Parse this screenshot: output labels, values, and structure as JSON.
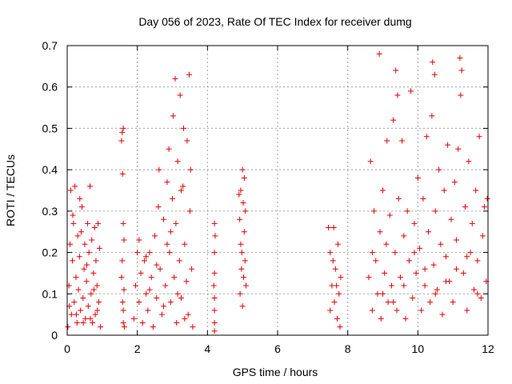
{
  "chart_data": {
    "type": "scatter",
    "title": "Day 056 of 2023, Rate Of TEC Index for receiver dumg",
    "xlabel": "GPS time / hours",
    "ylabel": "ROTI / TECUs",
    "xlim": [
      0,
      12
    ],
    "ylim": [
      0,
      0.7
    ],
    "x_ticks": [
      0,
      2,
      4,
      6,
      8,
      10,
      12
    ],
    "y_ticks": [
      0,
      0.1,
      0.2,
      0.3,
      0.4,
      0.5,
      0.6,
      0.7
    ],
    "x_tick_labels": [
      "0",
      "2",
      "4",
      "6",
      "8",
      "10",
      "12"
    ],
    "y_tick_labels": [
      "0",
      "0.1",
      "0.2",
      "0.3",
      "0.4",
      "0.5",
      "0.6",
      "0.7"
    ],
    "grid": true,
    "marker": "+",
    "color": "#e00000",
    "series": [
      {
        "name": "ROTI",
        "points": [
          [
            0.02,
            0.02
          ],
          [
            0.05,
            0.12
          ],
          [
            0.08,
            0.22
          ],
          [
            0.1,
            0.35
          ],
          [
            0.12,
            0.05
          ],
          [
            0.15,
            0.18
          ],
          [
            0.18,
            0.27
          ],
          [
            0.2,
            0.08
          ],
          [
            0.22,
            0.36
          ],
          [
            0.25,
            0.14
          ],
          [
            0.28,
            0.03
          ],
          [
            0.3,
            0.24
          ],
          [
            0.32,
            0.11
          ],
          [
            0.35,
            0.19
          ],
          [
            0.38,
            0.06
          ],
          [
            0.4,
            0.25
          ],
          [
            0.42,
            0.31
          ],
          [
            0.45,
            0.09
          ],
          [
            0.48,
            0.16
          ],
          [
            0.5,
            0.22
          ],
          [
            0.52,
            0.04
          ],
          [
            0.55,
            0.13
          ],
          [
            0.58,
            0.27
          ],
          [
            0.6,
            0.07
          ],
          [
            0.62,
            0.2
          ],
          [
            0.65,
            0.36
          ],
          [
            0.68,
            0.1
          ],
          [
            0.7,
            0.23
          ],
          [
            0.72,
            0.03
          ],
          [
            0.75,
            0.15
          ],
          [
            0.78,
            0.26
          ],
          [
            0.8,
            0.05
          ],
          [
            0.82,
            0.18
          ],
          [
            0.85,
            0.12
          ],
          [
            0.88,
            0.27
          ],
          [
            0.9,
            0.08
          ],
          [
            0.92,
            0.21
          ],
          [
            0.95,
            0.02
          ],
          [
            0.06,
            0.07
          ],
          [
            0.26,
            0.05
          ],
          [
            0.46,
            0.03
          ],
          [
            0.66,
            0.04
          ],
          [
            0.86,
            0.06
          ],
          [
            0.16,
            0.29
          ],
          [
            0.36,
            0.33
          ],
          [
            0.56,
            0.17
          ],
          [
            0.76,
            0.11
          ],
          [
            1.55,
            0.47
          ],
          [
            1.57,
            0.49
          ],
          [
            1.6,
            0.5
          ],
          [
            1.62,
            0.23
          ],
          [
            1.58,
            0.39
          ],
          [
            1.6,
            0.27
          ],
          [
            1.55,
            0.14
          ],
          [
            1.58,
            0.08
          ],
          [
            1.6,
            0.03
          ],
          [
            1.62,
            0.11
          ],
          [
            1.57,
            0.18
          ],
          [
            1.6,
            0.06
          ],
          [
            1.63,
            0.02
          ],
          [
            1.9,
            0.04
          ],
          [
            1.95,
            0.12
          ],
          [
            2.0,
            0.2
          ],
          [
            2.05,
            0.08
          ],
          [
            2.1,
            0.15
          ],
          [
            2.15,
            0.03
          ],
          [
            2.2,
            0.18
          ],
          [
            2.25,
            0.1
          ],
          [
            2.3,
            0.06
          ],
          [
            2.35,
            0.2
          ],
          [
            2.4,
            0.14
          ],
          [
            2.45,
            0.02
          ],
          [
            2.5,
            0.24
          ],
          [
            2.55,
            0.09
          ],
          [
            2.6,
            0.31
          ],
          [
            2.62,
            0.4
          ],
          [
            2.65,
            0.16
          ],
          [
            2.7,
            0.05
          ],
          [
            2.75,
            0.28
          ],
          [
            2.8,
            0.12
          ],
          [
            2.85,
            0.37
          ],
          [
            2.9,
            0.45
          ],
          [
            2.92,
            0.2
          ],
          [
            2.95,
            0.08
          ],
          [
            3.0,
            0.33
          ],
          [
            3.02,
            0.53
          ],
          [
            3.05,
            0.14
          ],
          [
            3.08,
            0.62
          ],
          [
            3.1,
            0.27
          ],
          [
            3.12,
            0.03
          ],
          [
            3.15,
            0.42
          ],
          [
            3.2,
            0.18
          ],
          [
            3.22,
            0.58
          ],
          [
            3.25,
            0.09
          ],
          [
            3.3,
            0.36
          ],
          [
            3.32,
            0.5
          ],
          [
            3.35,
            0.22
          ],
          [
            3.4,
            0.13
          ],
          [
            3.42,
            0.47
          ],
          [
            3.45,
            0.05
          ],
          [
            3.48,
            0.63
          ],
          [
            3.5,
            0.3
          ],
          [
            3.52,
            0.4
          ],
          [
            3.55,
            0.16
          ],
          [
            3.58,
            0.02
          ],
          [
            2.05,
            0.23
          ],
          [
            2.35,
            0.11
          ],
          [
            2.55,
            0.17
          ],
          [
            2.75,
            0.07
          ],
          [
            2.95,
            0.25
          ],
          [
            3.15,
            0.1
          ],
          [
            3.35,
            0.04
          ],
          [
            2.25,
            0.19
          ],
          [
            2.85,
            0.22
          ],
          [
            3.25,
            0.35
          ],
          [
            4.2,
            0.27
          ],
          [
            4.2,
            0.2
          ],
          [
            4.2,
            0.15
          ],
          [
            4.2,
            0.09
          ],
          [
            4.2,
            0.06
          ],
          [
            4.2,
            0.03
          ],
          [
            4.2,
            0.01
          ],
          [
            4.22,
            0.24
          ],
          [
            4.18,
            0.12
          ],
          [
            4.9,
            0.34
          ],
          [
            4.92,
            0.28
          ],
          [
            4.95,
            0.22
          ],
          [
            4.97,
            0.16
          ],
          [
            5.0,
            0.4
          ],
          [
            5.02,
            0.32
          ],
          [
            5.05,
            0.25
          ],
          [
            5.07,
            0.18
          ],
          [
            5.1,
            0.12
          ],
          [
            4.93,
            0.1
          ],
          [
            5.0,
            0.07
          ],
          [
            5.05,
            0.38
          ],
          [
            4.98,
            0.2
          ],
          [
            5.08,
            0.3
          ],
          [
            5.03,
            0.14
          ],
          [
            4.95,
            0.35
          ],
          [
            7.45,
            0.26
          ],
          [
            7.5,
            0.2
          ],
          [
            7.55,
            0.12
          ],
          [
            7.6,
            0.26
          ],
          [
            7.62,
            0.08
          ],
          [
            7.65,
            0.16
          ],
          [
            7.7,
            0.04
          ],
          [
            7.72,
            0.22
          ],
          [
            7.75,
            0.1
          ],
          [
            7.78,
            0.02
          ],
          [
            7.8,
            0.14
          ],
          [
            7.5,
            0.06
          ],
          [
            7.58,
            0.18
          ],
          [
            7.68,
            0.12
          ],
          [
            8.6,
            0.14
          ],
          [
            8.65,
            0.42
          ],
          [
            8.7,
            0.06
          ],
          [
            8.75,
            0.3
          ],
          [
            8.8,
            0.18
          ],
          [
            8.85,
            0.1
          ],
          [
            8.9,
            0.68
          ],
          [
            8.92,
            0.25
          ],
          [
            8.95,
            0.04
          ],
          [
            9.0,
            0.35
          ],
          [
            9.05,
            0.15
          ],
          [
            9.1,
            0.22
          ],
          [
            9.12,
            0.47
          ],
          [
            9.15,
            0.08
          ],
          [
            9.2,
            0.29
          ],
          [
            9.25,
            0.12
          ],
          [
            9.3,
            0.52
          ],
          [
            9.35,
            0.2
          ],
          [
            9.37,
            0.64
          ],
          [
            9.4,
            0.06
          ],
          [
            9.42,
            0.58
          ],
          [
            9.45,
            0.33
          ],
          [
            9.5,
            0.14
          ],
          [
            9.55,
            0.47
          ],
          [
            9.6,
            0.24
          ],
          [
            9.65,
            0.04
          ],
          [
            9.7,
            0.3
          ],
          [
            9.75,
            0.18
          ],
          [
            9.8,
            0.59
          ],
          [
            9.85,
            0.09
          ],
          [
            9.9,
            0.27
          ],
          [
            9.95,
            0.15
          ],
          [
            10.0,
            0.38
          ],
          [
            10.05,
            0.21
          ],
          [
            10.1,
            0.06
          ],
          [
            10.15,
            0.33
          ],
          [
            10.2,
            0.12
          ],
          [
            10.25,
            0.48
          ],
          [
            10.3,
            0.25
          ],
          [
            10.35,
            0.08
          ],
          [
            10.4,
            0.53
          ],
          [
            10.42,
            0.66
          ],
          [
            10.45,
            0.17
          ],
          [
            10.48,
            0.63
          ],
          [
            10.5,
            0.3
          ],
          [
            10.55,
            0.11
          ],
          [
            10.6,
            0.4
          ],
          [
            10.65,
            0.22
          ],
          [
            10.7,
            0.05
          ],
          [
            10.75,
            0.35
          ],
          [
            10.8,
            0.19
          ],
          [
            10.85,
            0.46
          ],
          [
            10.9,
            0.13
          ],
          [
            10.95,
            0.28
          ],
          [
            11.0,
            0.08
          ],
          [
            11.05,
            0.37
          ],
          [
            11.1,
            0.23
          ],
          [
            11.15,
            0.45
          ],
          [
            11.2,
            0.67
          ],
          [
            11.22,
            0.58
          ],
          [
            11.25,
            0.64
          ],
          [
            11.3,
            0.15
          ],
          [
            11.35,
            0.31
          ],
          [
            11.4,
            0.06
          ],
          [
            11.45,
            0.42
          ],
          [
            11.5,
            0.2
          ],
          [
            11.55,
            0.27
          ],
          [
            11.6,
            0.11
          ],
          [
            11.65,
            0.35
          ],
          [
            11.7,
            0.18
          ],
          [
            11.75,
            0.48
          ],
          [
            11.8,
            0.09
          ],
          [
            11.85,
            0.24
          ],
          [
            11.9,
            0.31
          ],
          [
            11.95,
            0.13
          ],
          [
            11.98,
            0.33
          ],
          [
            8.7,
            0.2
          ],
          [
            9.0,
            0.1
          ],
          [
            9.3,
            0.08
          ],
          [
            9.6,
            0.12
          ],
          [
            9.9,
            0.2
          ],
          [
            10.2,
            0.16
          ],
          [
            10.5,
            0.1
          ],
          [
            10.8,
            0.13
          ],
          [
            11.1,
            0.16
          ],
          [
            11.4,
            0.19
          ],
          [
            11.7,
            0.1
          ]
        ]
      }
    ]
  }
}
